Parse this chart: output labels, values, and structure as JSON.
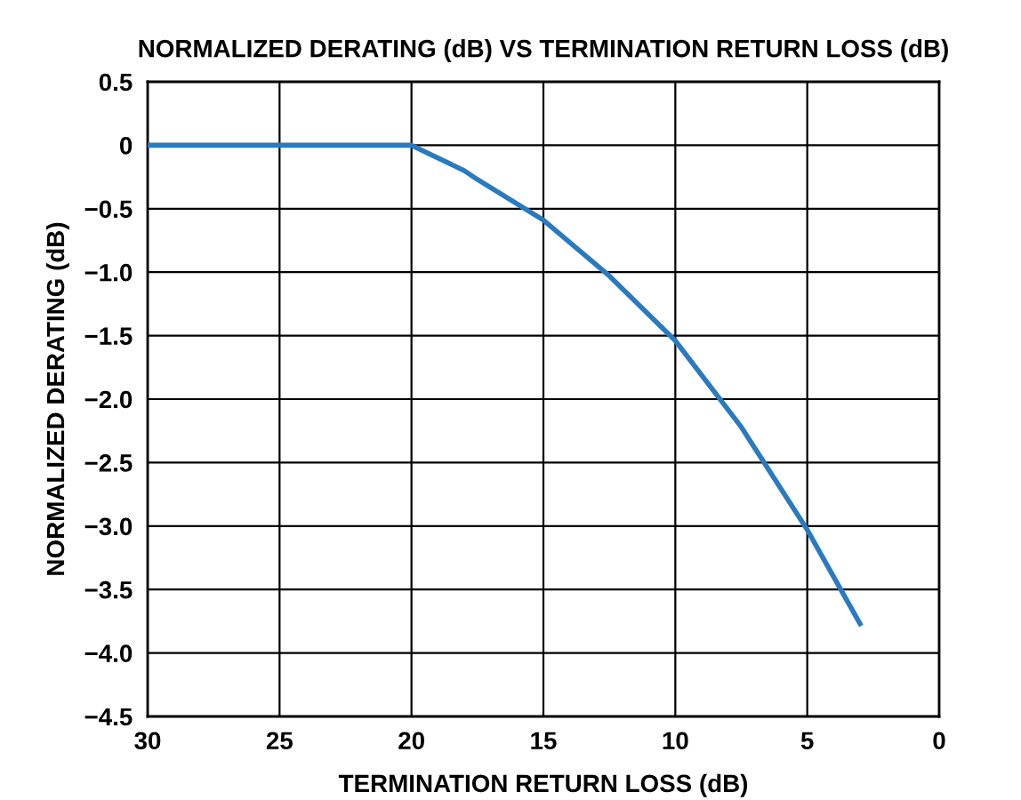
{
  "chart_data": {
    "type": "line",
    "title": "NORMALIZED DERATING (dB) VS TERMINATION RETURN LOSS (dB)",
    "xlabel": "TERMINATION RETURN LOSS (dB)",
    "ylabel": "NORMALIZED DERATING (dB)",
    "x": [
      30,
      25,
      20,
      18,
      17.5,
      15,
      12.5,
      10,
      7.5,
      5,
      3
    ],
    "series": [
      {
        "color": "#2a7abf",
        "values": [
          0,
          0,
          0,
          -0.2,
          -0.27,
          -0.59,
          -1.03,
          -1.54,
          -2.22,
          -3.03,
          -3.77
        ]
      }
    ],
    "xlim": [
      30,
      0
    ],
    "xticks": [
      30,
      25,
      20,
      15,
      10,
      5,
      0
    ],
    "ylim": [
      -4.5,
      0.5
    ],
    "yticks": [
      0.5,
      0,
      {
        "value": -0.5,
        "label": "−0.5"
      },
      {
        "value": -1.0,
        "label": "−1.0"
      },
      {
        "value": -1.5,
        "label": "−1.5"
      },
      {
        "value": -2.0,
        "label": "−2.0"
      },
      {
        "value": -2.5,
        "label": "−2.5"
      },
      {
        "value": -3.0,
        "label": "−3.0"
      },
      {
        "value": -3.5,
        "label": "−3.5"
      },
      {
        "value": -4.0,
        "label": "−4.0"
      },
      {
        "value": -4.5,
        "label": "−4.5"
      }
    ],
    "grid": true,
    "line_style": "solid",
    "marker": "none"
  }
}
